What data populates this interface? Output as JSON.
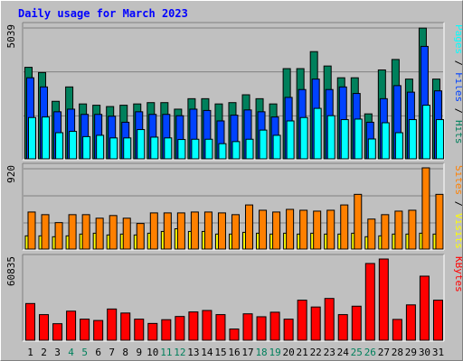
{
  "title": "Daily usage for March 2023",
  "colors": {
    "background": "#c0c0c0",
    "title": "#0000ff",
    "hits": "#00805c",
    "files": "#0042ff",
    "pages": "#00ffff",
    "visits": "#ffff00",
    "sites": "#ff8000",
    "kbytes": "#ff0000",
    "weekend_label": "#00805c",
    "weekday_label": "#000000"
  },
  "chart_data": [
    {
      "type": "bar",
      "title": "Daily usage for March 2023",
      "categories": [
        "1",
        "2",
        "3",
        "4",
        "5",
        "6",
        "7",
        "8",
        "9",
        "10",
        "11",
        "12",
        "13",
        "14",
        "15",
        "16",
        "17",
        "18",
        "19",
        "20",
        "21",
        "22",
        "23",
        "24",
        "25",
        "26",
        "27",
        "28",
        "29",
        "30",
        "31"
      ],
      "weekend_days": [
        "4",
        "5",
        "11",
        "12",
        "18",
        "19",
        "25",
        "26"
      ],
      "ymax_label": "5039",
      "ylim": [
        0,
        5039
      ],
      "right_labels": [
        "Pages",
        "Files",
        "Hits"
      ],
      "series": [
        {
          "name": "Hits",
          "values": [
            3500,
            3300,
            2200,
            2750,
            2100,
            2050,
            2000,
            2050,
            2100,
            2150,
            2150,
            1900,
            2300,
            2300,
            2100,
            2150,
            2450,
            2300,
            2100,
            3450,
            3450,
            4100,
            3550,
            3100,
            3100,
            1720,
            3400,
            3800,
            3050,
            5000,
            3050
          ]
        },
        {
          "name": "Files",
          "values": [
            3100,
            2750,
            1800,
            1900,
            1700,
            1700,
            1630,
            1400,
            1800,
            1700,
            1700,
            1650,
            1900,
            1850,
            1450,
            1670,
            1870,
            1800,
            1600,
            2350,
            2650,
            3050,
            2650,
            2750,
            2500,
            1400,
            2300,
            2800,
            2550,
            4300,
            2600
          ]
        },
        {
          "name": "Pages",
          "values": [
            1580,
            1600,
            1000,
            1050,
            850,
            900,
            800,
            800,
            1120,
            830,
            800,
            740,
            750,
            750,
            580,
            660,
            750,
            1100,
            900,
            1450,
            1580,
            1930,
            1650,
            1500,
            1520,
            760,
            1380,
            1000,
            1500,
            2050,
            1500
          ]
        }
      ]
    },
    {
      "type": "bar",
      "categories": [
        "1",
        "2",
        "3",
        "4",
        "5",
        "6",
        "7",
        "8",
        "9",
        "10",
        "11",
        "12",
        "13",
        "14",
        "15",
        "16",
        "17",
        "18",
        "19",
        "20",
        "21",
        "22",
        "23",
        "24",
        "25",
        "26",
        "27",
        "28",
        "29",
        "30",
        "31"
      ],
      "ymax_label": "920",
      "ylim": [
        0,
        920
      ],
      "right_labels": [
        "Sites",
        "Visits"
      ],
      "series": [
        {
          "name": "Sites",
          "values": [
            420,
            390,
            300,
            390,
            390,
            350,
            380,
            350,
            290,
            410,
            410,
            410,
            420,
            420,
            410,
            390,
            500,
            440,
            420,
            450,
            440,
            430,
            440,
            500,
            620,
            340,
            390,
            430,
            440,
            920,
            620
          ]
        },
        {
          "name": "Visits",
          "values": [
            150,
            150,
            140,
            150,
            170,
            180,
            160,
            170,
            160,
            180,
            200,
            230,
            200,
            200,
            170,
            170,
            190,
            180,
            170,
            180,
            170,
            180,
            170,
            170,
            180,
            140,
            150,
            170,
            170,
            180,
            170
          ]
        }
      ]
    },
    {
      "type": "bar",
      "categories": [
        "1",
        "2",
        "3",
        "4",
        "5",
        "6",
        "7",
        "8",
        "9",
        "10",
        "11",
        "12",
        "13",
        "14",
        "15",
        "16",
        "17",
        "18",
        "19",
        "20",
        "21",
        "22",
        "23",
        "24",
        "25",
        "26",
        "27",
        "28",
        "29",
        "30",
        "31"
      ],
      "ymax_label": "60835",
      "ylim": [
        0,
        60835
      ],
      "right_labels": [
        "KBytes"
      ],
      "series": [
        {
          "name": "KBytes",
          "values": [
            27500,
            19200,
            12400,
            21800,
            15800,
            14800,
            23400,
            20400,
            15800,
            12600,
            15400,
            17800,
            21200,
            22300,
            19200,
            8400,
            19800,
            17600,
            21000,
            15800,
            30000,
            24900,
            31300,
            19200,
            25500,
            57500,
            60835,
            15600,
            26500,
            48000,
            30000
          ]
        }
      ]
    }
  ]
}
